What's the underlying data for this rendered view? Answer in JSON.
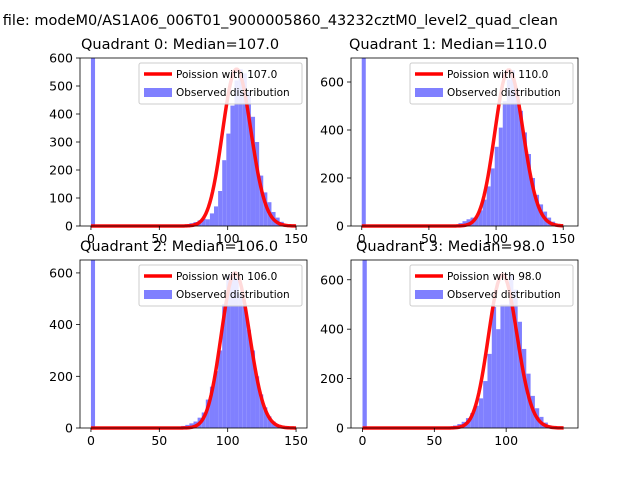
{
  "figure": {
    "suptitle": "n file: modeM0/AS1A06_006T01_9000005860_43232cztM0_level2_quad_clean"
  },
  "colors": {
    "histogram": "#8080ff",
    "poisson": "#ff0000",
    "legend_border": "#cccccc"
  },
  "chart_data": [
    {
      "type": "bar",
      "title": "Quadrant 0: Median=107.0",
      "mean": 107.0,
      "bin_width": 3,
      "xlim": [
        -8,
        158
      ],
      "ylim": [
        0,
        600
      ],
      "xticks": [
        0,
        50,
        100,
        150
      ],
      "yticks": [
        0,
        100,
        200,
        300,
        400,
        500,
        600
      ],
      "legend": {
        "location": "upper right",
        "entries": [
          "Poission with 107.0",
          "Observed distribution"
        ]
      },
      "series": [
        {
          "name": "Observed distribution",
          "type": "bar",
          "x": [
            0,
            63,
            66,
            69,
            72,
            75,
            78,
            81,
            84,
            87,
            90,
            93,
            96,
            99,
            102,
            105,
            108,
            111,
            114,
            117,
            120,
            123,
            126,
            129,
            132,
            135,
            138,
            141,
            144,
            147
          ],
          "values": [
            600,
            1,
            3,
            6,
            10,
            14,
            20,
            26,
            24,
            45,
            70,
            125,
            235,
            330,
            430,
            520,
            560,
            545,
            480,
            390,
            300,
            180,
            120,
            85,
            50,
            30,
            15,
            7,
            3,
            1
          ]
        },
        {
          "name": "Poission with 107.0",
          "type": "line",
          "x_range": [
            0,
            150
          ]
        }
      ]
    },
    {
      "type": "bar",
      "title": "Quadrant 1: Median=110.0",
      "mean": 110.0,
      "bin_width": 3,
      "xlim": [
        -8,
        161
      ],
      "ylim": [
        0,
        700
      ],
      "xticks": [
        0,
        50,
        100,
        150
      ],
      "yticks": [
        0,
        200,
        400,
        600
      ],
      "legend": {
        "location": "upper right",
        "entries": [
          "Poission with 110.0",
          "Observed distribution"
        ]
      },
      "series": [
        {
          "name": "Observed distribution",
          "type": "bar",
          "x": [
            0,
            66,
            69,
            72,
            75,
            78,
            81,
            84,
            87,
            90,
            93,
            96,
            99,
            102,
            105,
            108,
            111,
            114,
            117,
            120,
            123,
            126,
            129,
            132,
            135,
            138,
            141,
            144,
            147,
            150
          ],
          "values": [
            700,
            2,
            5,
            12,
            20,
            28,
            35,
            40,
            65,
            110,
            165,
            240,
            330,
            410,
            520,
            610,
            650,
            560,
            480,
            390,
            300,
            200,
            130,
            90,
            60,
            35,
            18,
            8,
            3,
            1
          ]
        },
        {
          "name": "Poission with 110.0",
          "type": "line",
          "x_range": [
            0,
            150
          ]
        }
      ]
    },
    {
      "type": "bar",
      "title": "Quadrant 2: Median=106.0",
      "mean": 106.0,
      "bin_width": 3,
      "xlim": [
        -8,
        158
      ],
      "ylim": [
        0,
        650
      ],
      "xticks": [
        0,
        50,
        100,
        150
      ],
      "yticks": [
        0,
        200,
        400,
        600
      ],
      "legend": {
        "location": "upper right",
        "entries": [
          "Poission with 106.0",
          "Observed distribution"
        ]
      },
      "series": [
        {
          "name": "Observed distribution",
          "type": "bar",
          "x": [
            0,
            60,
            63,
            66,
            69,
            72,
            75,
            78,
            81,
            84,
            87,
            90,
            93,
            96,
            99,
            102,
            105,
            108,
            111,
            114,
            117,
            120,
            123,
            126,
            129,
            132,
            135,
            138,
            141,
            144
          ],
          "values": [
            650,
            2,
            4,
            8,
            12,
            18,
            25,
            40,
            60,
            110,
            160,
            220,
            300,
            480,
            590,
            600,
            580,
            520,
            470,
            380,
            300,
            200,
            130,
            80,
            45,
            25,
            12,
            5,
            2,
            1
          ]
        },
        {
          "name": "Poission with 106.0",
          "type": "line",
          "x_range": [
            0,
            150
          ]
        }
      ]
    },
    {
      "type": "bar",
      "title": "Quadrant 3: Median=98.0",
      "mean": 98.0,
      "bin_width": 3,
      "xlim": [
        -8,
        150
      ],
      "ylim": [
        0,
        680
      ],
      "xticks": [
        0,
        50,
        100
      ],
      "yticks": [
        0,
        200,
        400,
        600
      ],
      "legend": {
        "location": "upper right",
        "entries": [
          "Poission with 98.0",
          "Observed distribution"
        ]
      },
      "series": [
        {
          "name": "Observed distribution",
          "type": "bar",
          "x": [
            0,
            54,
            57,
            60,
            63,
            66,
            69,
            72,
            75,
            78,
            81,
            84,
            87,
            90,
            93,
            96,
            99,
            102,
            105,
            108,
            111,
            114,
            117,
            120,
            123,
            126,
            129,
            132,
            135,
            138
          ],
          "values": [
            680,
            1,
            3,
            6,
            10,
            16,
            25,
            40,
            60,
            90,
            120,
            190,
            300,
            490,
            400,
            500,
            500,
            620,
            560,
            430,
            320,
            220,
            130,
            80,
            45,
            22,
            10,
            4,
            2,
            1
          ]
        },
        {
          "name": "Poission with 98.0",
          "type": "line",
          "x_range": [
            0,
            140
          ]
        }
      ]
    }
  ]
}
